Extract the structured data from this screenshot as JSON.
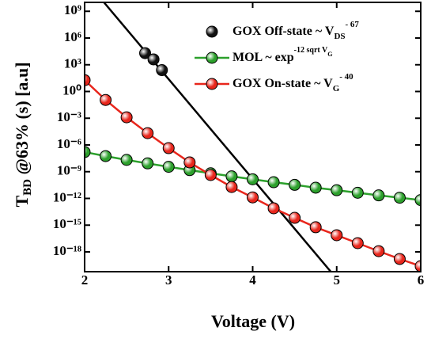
{
  "chart_data": {
    "type": "line",
    "x_label": "Voltage (V)",
    "y_label": {
      "main": "T",
      "sub": "BD",
      "rest": " @63% (s) [a.u]"
    },
    "xlim": [
      2,
      6
    ],
    "xticks": [
      2,
      3,
      4,
      5,
      6
    ],
    "ylim": [
      6e-21,
      10000000000.0
    ],
    "log_y": true,
    "yticks": [
      {
        "value": 1000000000.0,
        "label": "10⁹"
      },
      {
        "value": 1000000.0,
        "label": "10⁶"
      },
      {
        "value": 1000.0,
        "label": "10³"
      },
      {
        "value": 1,
        "label": "10⁰"
      },
      {
        "value": 0.001,
        "label": "10⁻³"
      },
      {
        "value": 1e-06,
        "label": "10⁻⁶"
      },
      {
        "value": 1e-09,
        "label": "10⁻⁹"
      },
      {
        "value": 1e-12,
        "label": "10⁻¹²"
      },
      {
        "value": 1e-15,
        "label": "10⁻¹⁵"
      },
      {
        "value": 1e-18,
        "label": "10⁻¹⁸"
      }
    ],
    "legend": "upper right",
    "fit_line": {
      "color": "#000000",
      "x": [
        2.23,
        4.93
      ],
      "values": [
        10000000000.0,
        6e-21
      ]
    },
    "series": [
      {
        "name": "GOX Off-state ~ V",
        "name_sub": "DS",
        "name_sup": "- 67",
        "color": "#111111",
        "line": false,
        "x": [
          2.72,
          2.82,
          2.92
        ],
        "values": [
          20000,
          4000,
          250
        ]
      },
      {
        "name": "MOL ~ exp",
        "name_sup": "-12 sqrt V",
        "name_sup_sub": "G",
        "color": "#2ca02c",
        "line": true,
        "x": [
          2,
          2.25,
          2.5,
          2.75,
          3,
          3.25,
          3.5,
          3.75,
          4,
          4.25,
          4.5,
          4.75,
          5,
          5.25,
          5.5,
          5.75,
          6
        ],
        "values": [
          1.6e-07,
          5.6e-08,
          2.1e-08,
          8.5e-09,
          3.5e-09,
          1.5e-09,
          6.6e-10,
          3e-10,
          1.4e-10,
          6.6e-11,
          3.3e-11,
          1.6e-11,
          8.3e-12,
          4.3e-12,
          2.2e-12,
          1.2e-12,
          6.5e-13
        ]
      },
      {
        "name": "GOX On-state ~ V",
        "name_sub": "G",
        "name_sup": "- 40",
        "color": "#e8261c",
        "line": true,
        "x": [
          2,
          2.25,
          2.5,
          2.75,
          3,
          3.25,
          3.5,
          3.75,
          4,
          4.25,
          4.5,
          4.75,
          5,
          5.25,
          5.5,
          5.75,
          6
        ],
        "values": [
          18.6,
          0.112,
          0.00126,
          2.1e-05,
          4.4e-07,
          1.1e-08,
          4.2e-10,
          1.9e-11,
          1.3e-12,
          7.8e-14,
          6.6e-15,
          5.8e-16,
          7.4e-17,
          9.5e-18,
          1.2e-18,
          1.6e-19,
          2.5e-20
        ]
      }
    ]
  }
}
